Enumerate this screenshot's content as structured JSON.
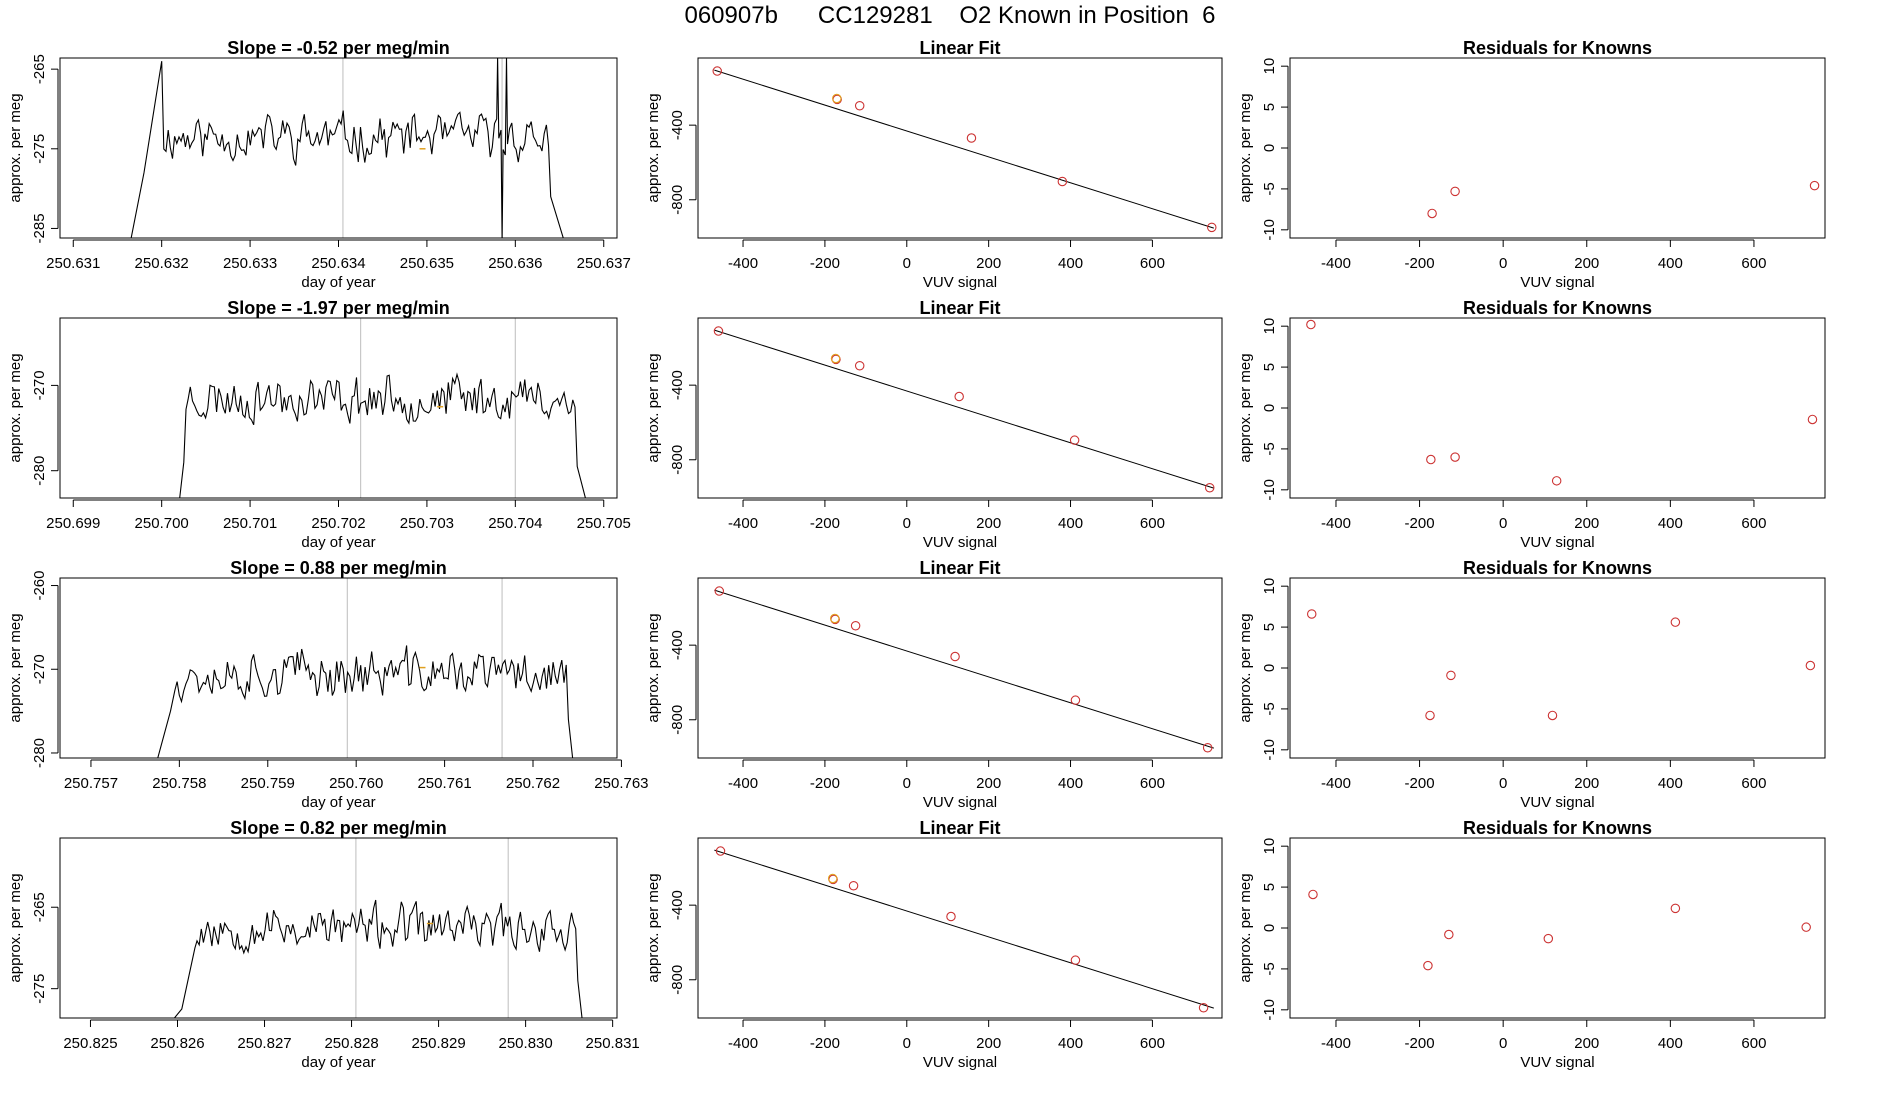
{
  "figure": {
    "title": "060907b      CC129281    O2 Known in Position  6"
  },
  "colors": {
    "line": "#000000",
    "marker_known": "#cc3333",
    "marker_highlight": "#e0a020",
    "vline": "#c8c8c8"
  },
  "chart_data": [
    {
      "type": "line",
      "row": 0,
      "panel": "timeseries",
      "title": "Slope =  -0.52  per meg/min",
      "xlabel": "day of year",
      "ylabel": "approx. per meg",
      "xlim": [
        250.63085,
        250.63715
      ],
      "ylim": [
        -286.2,
        -263.6
      ],
      "xticks": [
        250.631,
        250.632,
        250.633,
        250.634,
        250.635,
        250.636,
        250.637
      ],
      "xtick_labels": [
        "250.631",
        "250.632",
        "250.633",
        "250.634",
        "250.635",
        "250.636",
        "250.637"
      ],
      "yticks": [
        -265,
        -275,
        -285
      ],
      "ytick_labels": [
        "-265",
        "-275",
        "-285"
      ],
      "vlines": [
        250.63405,
        250.63585
      ],
      "highlight": [
        250.63495,
        -275.0
      ],
      "segment": {
        "x_start": 250.63165,
        "x_end": 250.63655,
        "seed": 11,
        "center": -273.5,
        "amp": 3.6,
        "trend": -0.008,
        "start_shape": [
          [
            250.63165,
            -286.5
          ],
          [
            250.6318,
            -278
          ],
          [
            250.632,
            -264
          ]
        ],
        "end_shape": [
          [
            250.6364,
            -281
          ],
          [
            250.63655,
            -286.5
          ]
        ],
        "spikes": [
          [
            250.6358,
            -263.5
          ],
          [
            250.63585,
            -286.5
          ],
          [
            250.6359,
            -263.5
          ]
        ]
      }
    },
    {
      "type": "scatter",
      "row": 0,
      "panel": "fit",
      "title": "Linear Fit",
      "xlabel": "VUV signal",
      "ylabel": "approx. per meg",
      "xlim": [
        -510,
        770
      ],
      "ylim": [
        -1005,
        -40
      ],
      "xticks": [
        -400,
        -200,
        0,
        200,
        400,
        600
      ],
      "xtick_labels": [
        "-400",
        "-200",
        "0",
        "200",
        "400",
        "600"
      ],
      "yticks": [
        -400,
        -800
      ],
      "ytick_labels": [
        "-400",
        "-800"
      ],
      "points": [
        [
          -463,
          -110
        ],
        [
          -170,
          -262
        ],
        [
          -115,
          -296
        ],
        [
          158,
          -469
        ],
        [
          380,
          -702
        ],
        [
          745,
          -948
        ]
      ],
      "highlight": [
        -171,
        -257
      ],
      "fit_line": [
        [
          -470,
          -105
        ],
        [
          750,
          -952
        ]
      ]
    },
    {
      "type": "scatter",
      "row": 0,
      "panel": "residuals",
      "title": "Residuals for Knowns",
      "xlabel": "VUV signal",
      "ylabel": "approx. per meg",
      "xlim": [
        -510,
        770
      ],
      "ylim": [
        -11,
        11
      ],
      "xticks": [
        -400,
        -200,
        0,
        200,
        400,
        600
      ],
      "xtick_labels": [
        "-400",
        "-200",
        "0",
        "200",
        "400",
        "600"
      ],
      "yticks": [
        10,
        5,
        0,
        -5,
        -10
      ],
      "ytick_labels": [
        "10",
        "5",
        "0",
        "-5",
        "-10"
      ],
      "points": [
        [
          -170,
          -8
        ],
        [
          -115,
          -5.3
        ],
        [
          745,
          -4.6
        ]
      ]
    },
    {
      "type": "line",
      "row": 1,
      "panel": "timeseries",
      "title": "Slope =  -1.97  per meg/min",
      "xlabel": "day of year",
      "ylabel": "approx. per meg",
      "xlim": [
        250.69885,
        250.70515
      ],
      "ylim": [
        -283.2,
        -262.1
      ],
      "xticks": [
        250.699,
        250.7,
        250.701,
        250.702,
        250.703,
        250.704,
        250.705
      ],
      "xtick_labels": [
        "250.699",
        "250.700",
        "250.701",
        "250.702",
        "250.703",
        "250.704",
        "250.705"
      ],
      "yticks": [
        -270,
        -280
      ],
      "ytick_labels": [
        "-270",
        "-280"
      ],
      "vlines": [
        250.70225,
        250.704
      ],
      "highlight": [
        250.70315,
        -272.5
      ],
      "segment": {
        "x_start": 250.7002,
        "x_end": 250.7048,
        "seed": 23,
        "center": -271.5,
        "amp": 3.4,
        "trend": 0.0,
        "start_shape": [
          [
            250.7002,
            -283.5
          ],
          [
            250.70025,
            -279
          ]
        ],
        "end_shape": [
          [
            250.7047,
            -279.5
          ],
          [
            250.7048,
            -283.5
          ]
        ],
        "spikes": []
      }
    },
    {
      "type": "scatter",
      "row": 1,
      "panel": "fit",
      "title": "Linear Fit",
      "xlabel": "VUV signal",
      "ylabel": "approx. per meg",
      "xlim": [
        -510,
        770
      ],
      "ylim": [
        -1005,
        -40
      ],
      "xticks": [
        -400,
        -200,
        0,
        200,
        400,
        600
      ],
      "xtick_labels": [
        "-400",
        "-200",
        "0",
        "200",
        "400",
        "600"
      ],
      "yticks": [
        -400,
        -800
      ],
      "ytick_labels": [
        "-400",
        "-800"
      ],
      "points": [
        [
          -460,
          -110
        ],
        [
          -173,
          -262
        ],
        [
          -115,
          -296
        ],
        [
          128,
          -461
        ],
        [
          410,
          -695
        ],
        [
          740,
          -950
        ]
      ],
      "highlight": [
        -174,
        -257
      ],
      "fit_line": [
        [
          -470,
          -105
        ],
        [
          750,
          -952
        ]
      ]
    },
    {
      "type": "scatter",
      "row": 1,
      "panel": "residuals",
      "title": "Residuals for Knowns",
      "xlabel": "VUV signal",
      "ylabel": "approx. per meg",
      "xlim": [
        -510,
        770
      ],
      "ylim": [
        -11,
        11
      ],
      "xticks": [
        -400,
        -200,
        0,
        200,
        400,
        600
      ],
      "xtick_labels": [
        "-400",
        "-200",
        "0",
        "200",
        "400",
        "600"
      ],
      "yticks": [
        10,
        5,
        0,
        -5,
        -10
      ],
      "ytick_labels": [
        "10",
        "5",
        "0",
        "-5",
        "-10"
      ],
      "points": [
        [
          -460,
          10.2
        ],
        [
          -173,
          -6.3
        ],
        [
          -115,
          -6.0
        ],
        [
          128,
          -8.9
        ],
        [
          740,
          -1.4
        ]
      ]
    },
    {
      "type": "line",
      "row": 2,
      "panel": "timeseries",
      "title": "Slope =  0.88  per meg/min",
      "xlabel": "day of year",
      "ylabel": "approx. per meg",
      "xlim": [
        250.75665,
        250.76295
      ],
      "ylim": [
        -280.6,
        -259.1
      ],
      "xticks": [
        250.757,
        250.758,
        250.759,
        250.76,
        250.761,
        250.762,
        250.763
      ],
      "xtick_labels": [
        "250.757",
        "250.758",
        "250.759",
        "250.760",
        "250.761",
        "250.762",
        "250.763"
      ],
      "yticks": [
        -260,
        -270,
        -280
      ],
      "ytick_labels": [
        "-260",
        "-270",
        "-280"
      ],
      "vlines": [
        250.7599,
        250.76165
      ],
      "highlight": [
        250.76075,
        -269.8
      ],
      "segment": {
        "x_start": 250.75775,
        "x_end": 250.76245,
        "seed": 37,
        "center": -270.5,
        "amp": 3.6,
        "trend": 0.0,
        "start_shape": [
          [
            250.75775,
            -280.8
          ],
          [
            250.7579,
            -275
          ],
          [
            250.75795,
            -272.5
          ]
        ],
        "end_shape": [
          [
            250.7624,
            -276
          ],
          [
            250.76245,
            -280.8
          ]
        ],
        "spikes": []
      }
    },
    {
      "type": "scatter",
      "row": 2,
      "panel": "fit",
      "title": "Linear Fit",
      "xlabel": "VUV signal",
      "ylabel": "approx. per meg",
      "xlim": [
        -510,
        770
      ],
      "ylim": [
        -1005,
        -40
      ],
      "xticks": [
        -400,
        -200,
        0,
        200,
        400,
        600
      ],
      "xtick_labels": [
        "-400",
        "-200",
        "0",
        "200",
        "400",
        "600"
      ],
      "yticks": [
        -400,
        -800
      ],
      "ytick_labels": [
        "-400",
        "-800"
      ],
      "points": [
        [
          -458,
          -110
        ],
        [
          -175,
          -262
        ],
        [
          -125,
          -296
        ],
        [
          118,
          -461
        ],
        [
          412,
          -695
        ],
        [
          735,
          -950
        ]
      ],
      "highlight": [
        -176,
        -257
      ],
      "fit_line": [
        [
          -470,
          -105
        ],
        [
          750,
          -952
        ]
      ]
    },
    {
      "type": "scatter",
      "row": 2,
      "panel": "residuals",
      "title": "Residuals for Knowns",
      "xlabel": "VUV signal",
      "ylabel": "approx. per meg",
      "xlim": [
        -510,
        770
      ],
      "ylim": [
        -11,
        11
      ],
      "xticks": [
        -400,
        -200,
        0,
        200,
        400,
        600
      ],
      "xtick_labels": [
        "-400",
        "-200",
        "0",
        "200",
        "400",
        "600"
      ],
      "yticks": [
        10,
        5,
        0,
        -5,
        -10
      ],
      "ytick_labels": [
        "10",
        "5",
        "0",
        "-5",
        "-10"
      ],
      "points": [
        [
          -458,
          6.6
        ],
        [
          -175,
          -5.8
        ],
        [
          -125,
          -0.9
        ],
        [
          118,
          -5.8
        ],
        [
          412,
          5.6
        ],
        [
          735,
          0.3
        ]
      ]
    },
    {
      "type": "line",
      "row": 3,
      "panel": "timeseries",
      "title": "Slope =  0.82  per meg/min",
      "xlabel": "day of year",
      "ylabel": "approx. per meg",
      "xlim": [
        250.82465,
        250.83105
      ],
      "ylim": [
        -278.6,
        -256.5
      ],
      "xticks": [
        250.825,
        250.826,
        250.827,
        250.828,
        250.829,
        250.83,
        250.831
      ],
      "xtick_labels": [
        "250.825",
        "250.826",
        "250.827",
        "250.828",
        "250.829",
        "250.830",
        "250.831"
      ],
      "yticks": [
        -265,
        -275
      ],
      "ytick_labels": [
        "-265",
        "-275"
      ],
      "vlines": [
        250.82805,
        250.8298
      ],
      "highlight": [
        250.8289,
        -267.0
      ],
      "segment": {
        "x_start": 250.82595,
        "x_end": 250.83065,
        "seed": 53,
        "center": -267.5,
        "amp": 3.4,
        "trend": 0.0,
        "start_shape": [
          [
            250.82595,
            -278.8
          ],
          [
            250.82605,
            -277.5
          ],
          [
            250.8262,
            -270
          ]
        ],
        "end_shape": [
          [
            250.8306,
            -274
          ],
          [
            250.83065,
            -278.8
          ]
        ],
        "spikes": []
      }
    },
    {
      "type": "scatter",
      "row": 3,
      "panel": "fit",
      "title": "Linear Fit",
      "xlabel": "VUV signal",
      "ylabel": "approx. per meg",
      "xlim": [
        -510,
        770
      ],
      "ylim": [
        -1005,
        -40
      ],
      "xticks": [
        -400,
        -200,
        0,
        200,
        400,
        600
      ],
      "xtick_labels": [
        "-400",
        "-200",
        "0",
        "200",
        "400",
        "600"
      ],
      "yticks": [
        -400,
        -800
      ],
      "ytick_labels": [
        "-400",
        "-800"
      ],
      "points": [
        [
          -455,
          -110
        ],
        [
          -180,
          -262
        ],
        [
          -130,
          -296
        ],
        [
          108,
          -461
        ],
        [
          412,
          -695
        ],
        [
          725,
          -950
        ]
      ],
      "highlight": [
        -181,
        -257
      ],
      "fit_line": [
        [
          -470,
          -105
        ],
        [
          750,
          -952
        ]
      ]
    },
    {
      "type": "scatter",
      "row": 3,
      "panel": "residuals",
      "title": "Residuals for Knowns",
      "xlabel": "VUV signal",
      "ylabel": "approx. per meg",
      "xlim": [
        -510,
        770
      ],
      "ylim": [
        -11,
        11
      ],
      "xticks": [
        -400,
        -200,
        0,
        200,
        400,
        600
      ],
      "xtick_labels": [
        "-400",
        "-200",
        "0",
        "200",
        "400",
        "600"
      ],
      "yticks": [
        10,
        5,
        0,
        -5,
        -10
      ],
      "ytick_labels": [
        "10",
        "5",
        "0",
        "-5",
        "-10"
      ],
      "points": [
        [
          -455,
          4.1
        ],
        [
          -180,
          -4.6
        ],
        [
          -130,
          -0.8
        ],
        [
          108,
          -1.3
        ],
        [
          412,
          2.4
        ],
        [
          725,
          0.1
        ]
      ]
    }
  ]
}
